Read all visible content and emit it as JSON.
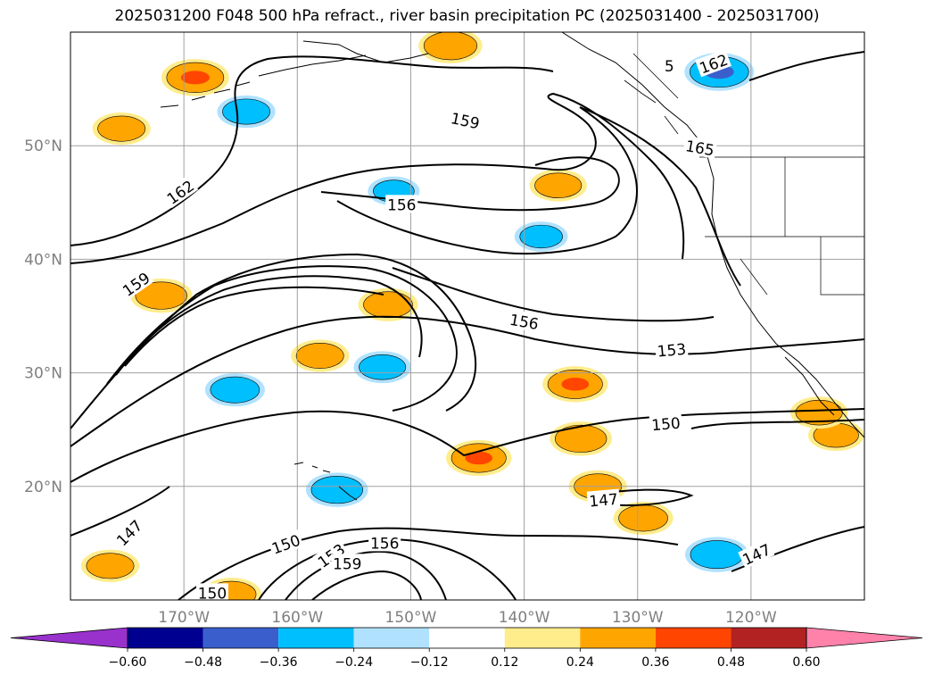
{
  "title": "2025031200 F048 500 hPa refract., river basin precipitation PC (2025031400 - 2025031700)",
  "map": {
    "lon_labels": [
      "170°W",
      "160°W",
      "150°W",
      "140°W",
      "130°W",
      "120°W"
    ],
    "lat_labels": [
      "50°N",
      "40°N",
      "30°N",
      "20°N"
    ],
    "contour_labels": [
      {
        "text": "162",
        "lon": -170.3,
        "lat": 45.9,
        "rot": -35
      },
      {
        "text": "162",
        "lon": -123.3,
        "lat": 57.2,
        "rot": -20
      },
      {
        "text": "159",
        "lon": -145.2,
        "lat": 52.2,
        "rot": 12
      },
      {
        "text": "165",
        "lon": -124.5,
        "lat": 49.8,
        "rot": 10
      },
      {
        "text": "156",
        "lon": -150.8,
        "lat": 44.8,
        "rot": 0
      },
      {
        "text": "159",
        "lon": -174.2,
        "lat": 37.8,
        "rot": -35
      },
      {
        "text": "156",
        "lon": -140.0,
        "lat": 34.5,
        "rot": 10
      },
      {
        "text": "153",
        "lon": -127.0,
        "lat": 32.0,
        "rot": -5
      },
      {
        "text": "150",
        "lon": -127.5,
        "lat": 25.5,
        "rot": -5
      },
      {
        "text": "147",
        "lon": -133.0,
        "lat": 18.8,
        "rot": -5
      },
      {
        "text": "147",
        "lon": -174.8,
        "lat": 15.9,
        "rot": -45
      },
      {
        "text": "150",
        "lon": -161.0,
        "lat": 14.9,
        "rot": -20
      },
      {
        "text": "153",
        "lon": -157.0,
        "lat": 13.9,
        "rot": -35
      },
      {
        "text": "156",
        "lon": -152.3,
        "lat": 15.0,
        "rot": 0
      },
      {
        "text": "159",
        "lon": -155.6,
        "lat": 13.2,
        "rot": 0
      },
      {
        "text": "150",
        "lon": -167.5,
        "lat": 10.6,
        "rot": 0
      },
      {
        "text": "147",
        "lon": -119.5,
        "lat": 14.0,
        "rot": -25
      },
      {
        "text": "5",
        "lon": -127.2,
        "lat": 57.0,
        "rot": 0
      }
    ]
  },
  "colorbar": {
    "ticks": [
      "−0.60",
      "−0.48",
      "−0.36",
      "−0.24",
      "−0.12",
      "0.12",
      "0.24",
      "0.36",
      "0.48",
      "0.60"
    ],
    "colors": [
      "#9932cc",
      "#000090",
      "#3a5fcd",
      "#00bfff",
      "#b0e2ff",
      "#ffffff",
      "#ffec8b",
      "#ffa500",
      "#ff4500",
      "#b22222",
      "#ff82ab"
    ]
  },
  "chart_data": {
    "type": "heatmap",
    "title": "2025031200 F048 500 hPa refract., river basin precipitation PC (2025031400 - 2025031700)",
    "projection": "cylindrical lon/lat",
    "extent": {
      "lon": [
        -180,
        -110
      ],
      "lat": [
        10,
        60
      ]
    },
    "grid": true,
    "legend": "horizontal colorbar, bottom",
    "colorbar_levels": [
      -0.6,
      -0.48,
      -0.36,
      -0.24,
      -0.12,
      0.12,
      0.24,
      0.36,
      0.48,
      0.6
    ],
    "contour_variable": "500 hPa refractivity",
    "contour_levels": [
      147,
      150,
      153,
      156,
      159,
      162,
      165
    ],
    "blobs": [
      {
        "lon": -169.0,
        "lat": 56.0,
        "value": 0.4
      },
      {
        "lon": -146.5,
        "lat": 58.8,
        "value": 0.35
      },
      {
        "lon": -175.5,
        "lat": 51.5,
        "value": 0.28
      },
      {
        "lon": -164.5,
        "lat": 53.0,
        "value": -0.28
      },
      {
        "lon": -122.8,
        "lat": 56.5,
        "value": -0.42
      },
      {
        "lon": -172.0,
        "lat": 36.8,
        "value": 0.33
      },
      {
        "lon": -151.5,
        "lat": 46.0,
        "value": -0.2
      },
      {
        "lon": -138.5,
        "lat": 42.0,
        "value": -0.22
      },
      {
        "lon": -137.0,
        "lat": 46.5,
        "value": 0.27
      },
      {
        "lon": -152.0,
        "lat": 36.0,
        "value": 0.3
      },
      {
        "lon": -165.5,
        "lat": 28.5,
        "value": -0.3
      },
      {
        "lon": -158.0,
        "lat": 31.5,
        "value": 0.28
      },
      {
        "lon": -152.5,
        "lat": 30.5,
        "value": -0.27
      },
      {
        "lon": -135.5,
        "lat": 29.0,
        "value": 0.37
      },
      {
        "lon": -135.0,
        "lat": 24.2,
        "value": 0.33
      },
      {
        "lon": -144.0,
        "lat": 22.5,
        "value": 0.37
      },
      {
        "lon": -133.5,
        "lat": 20.0,
        "value": 0.28
      },
      {
        "lon": -129.5,
        "lat": 17.2,
        "value": 0.3
      },
      {
        "lon": -156.5,
        "lat": 19.7,
        "value": -0.33
      },
      {
        "lon": -123.0,
        "lat": 14.0,
        "value": -0.35
      },
      {
        "lon": -176.5,
        "lat": 13.0,
        "value": 0.28
      },
      {
        "lon": -165.8,
        "lat": 10.5,
        "value": 0.3
      },
      {
        "lon": -112.5,
        "lat": 24.5,
        "value": 0.25
      },
      {
        "lon": -114.0,
        "lat": 26.5,
        "value": 0.27
      }
    ]
  }
}
